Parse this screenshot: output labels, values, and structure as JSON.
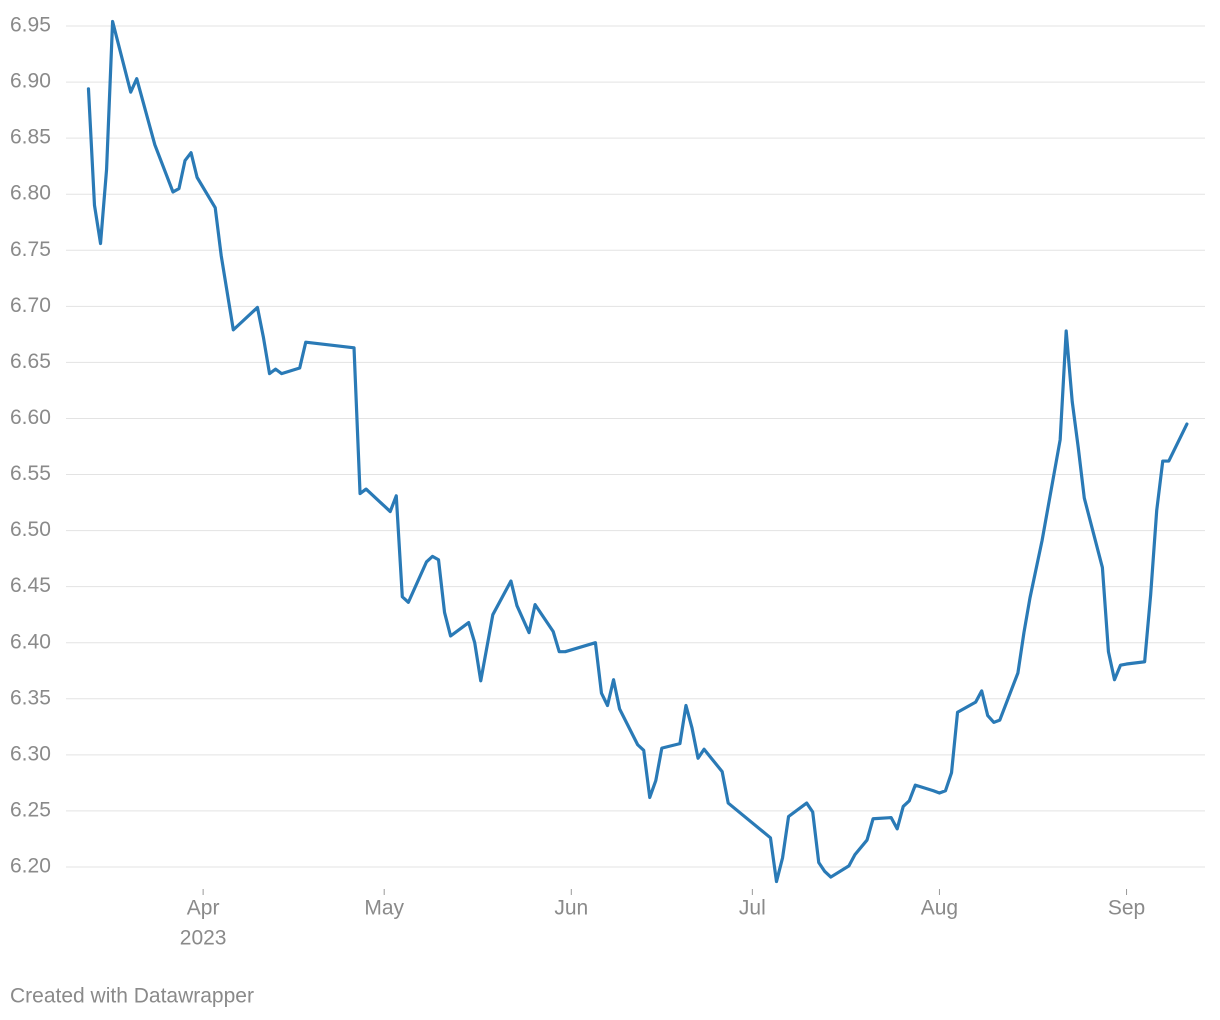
{
  "chart_data": {
    "type": "line",
    "x": [
      72,
      73,
      74,
      75,
      76,
      79,
      80,
      83,
      86,
      87,
      88,
      89,
      90,
      93,
      94,
      96,
      100,
      101,
      102,
      103,
      104,
      107,
      108,
      116,
      117,
      118,
      122,
      123,
      124,
      125,
      128,
      129,
      130,
      131,
      132,
      135,
      136,
      137,
      139,
      142,
      143,
      145,
      146,
      149,
      150,
      151,
      156,
      157,
      158,
      159,
      160,
      163,
      164,
      165,
      166,
      167,
      170,
      171,
      172,
      173,
      174,
      177,
      178,
      185,
      186,
      187,
      188,
      191,
      192,
      193,
      194,
      195,
      198,
      199,
      201,
      202,
      205,
      206,
      207,
      208,
      209,
      212,
      213,
      214,
      215,
      216,
      219,
      220,
      221,
      222,
      223,
      226,
      227,
      228,
      230,
      233,
      234,
      235,
      236,
      237,
      240,
      241,
      242,
      243,
      244,
      247,
      248,
      249,
      250,
      251,
      254
    ],
    "series": [
      {
        "color": "#2a7ab6",
        "values": [
          6.894,
          6.79,
          6.756,
          6.822,
          6.954,
          6.891,
          6.903,
          6.844,
          6.802,
          6.805,
          6.83,
          6.837,
          6.815,
          6.788,
          6.745,
          6.679,
          6.699,
          6.672,
          6.64,
          6.644,
          6.64,
          6.645,
          6.668,
          6.663,
          6.533,
          6.537,
          6.517,
          6.531,
          6.441,
          6.436,
          6.472,
          6.477,
          6.474,
          6.427,
          6.406,
          6.418,
          6.4,
          6.366,
          6.425,
          6.455,
          6.433,
          6.409,
          6.434,
          6.41,
          6.392,
          6.392,
          6.4,
          6.355,
          6.344,
          6.367,
          6.341,
          6.309,
          6.304,
          6.262,
          6.277,
          6.306,
          6.31,
          6.344,
          6.324,
          6.297,
          6.305,
          6.285,
          6.257,
          6.226,
          6.187,
          6.208,
          6.245,
          6.257,
          6.249,
          6.204,
          6.196,
          6.191,
          6.201,
          6.211,
          6.224,
          6.243,
          6.244,
          6.234,
          6.254,
          6.259,
          6.273,
          6.268,
          6.266,
          6.268,
          6.284,
          6.338,
          6.347,
          6.357,
          6.335,
          6.329,
          6.331,
          6.373,
          6.409,
          6.44,
          6.491,
          6.581,
          6.678,
          6.615,
          6.574,
          6.529,
          6.467,
          6.392,
          6.367,
          6.38,
          6.381,
          6.383,
          6.443,
          6.518,
          6.562,
          6.562,
          6.595
        ]
      }
    ],
    "xlim": [
      59,
      257
    ],
    "xticks": [
      {
        "value": 91,
        "label": "Apr"
      },
      {
        "value": 121,
        "label": "May"
      },
      {
        "value": 152,
        "label": "Jun"
      },
      {
        "value": 182,
        "label": "Jul"
      },
      {
        "value": 213,
        "label": "Aug"
      },
      {
        "value": 244,
        "label": "Sep"
      }
    ],
    "year_label": "2023",
    "ylim": [
      6.18,
      6.95
    ],
    "yticks": [
      {
        "value": 6.2,
        "label": "6.20"
      },
      {
        "value": 6.25,
        "label": "6.25"
      },
      {
        "value": 6.3,
        "label": "6.30"
      },
      {
        "value": 6.35,
        "label": "6.35"
      },
      {
        "value": 6.4,
        "label": "6.40"
      },
      {
        "value": 6.45,
        "label": "6.45"
      },
      {
        "value": 6.5,
        "label": "6.50"
      },
      {
        "value": 6.55,
        "label": "6.55"
      },
      {
        "value": 6.6,
        "label": "6.60"
      },
      {
        "value": 6.65,
        "label": "6.65"
      },
      {
        "value": 6.7,
        "label": "6.70"
      },
      {
        "value": 6.75,
        "label": "6.75"
      },
      {
        "value": 6.8,
        "label": "6.80"
      },
      {
        "value": 6.85,
        "label": "6.85"
      },
      {
        "value": 6.9,
        "label": "6.90"
      },
      {
        "value": 6.95,
        "label": "6.95"
      }
    ],
    "grid": true,
    "credit": "Created with Datawrapper"
  }
}
